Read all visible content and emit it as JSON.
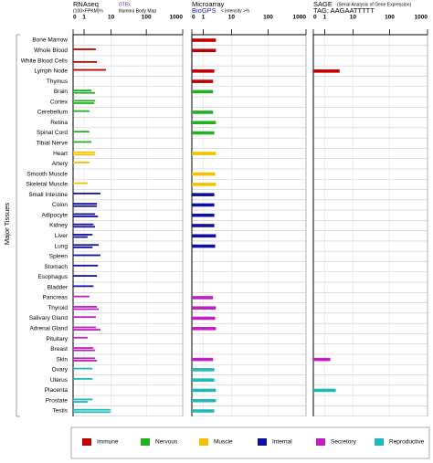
{
  "y_axis_label": "Major Tissues",
  "categories": [
    "Bone Marrow",
    "Whole Blood",
    "White Blood Cells",
    "Lymph Node",
    "Thymus",
    "Brain",
    "Cortex",
    "Cerebellum",
    "Retina",
    "Spinal Cord",
    "Tibial Nerve",
    "Heart",
    "Artery",
    "Smooth Muscle",
    "Skeletal Muscle",
    "Small Intestine",
    "Colon",
    "Adipocyte",
    "Kidney",
    "Liver",
    "Lung",
    "Spleen",
    "Stomach",
    "Esophagus",
    "Bladder",
    "Pancreas",
    "Thyroid",
    "Salivary Gland",
    "Adrenal Gland",
    "Pituitary",
    "Breast",
    "Skin",
    "Ovary",
    "Uterus",
    "Placenta",
    "Prostate",
    "Testis"
  ],
  "category_colors": [
    "#c00000",
    "#c00000",
    "#c00000",
    "#c00000",
    "#c00000",
    "#20b020",
    "#20b020",
    "#20b020",
    "#20b020",
    "#20b020",
    "#20b020",
    "#f5c000",
    "#f5c000",
    "#f5c000",
    "#f5c000",
    "#1010a0",
    "#1010a0",
    "#1010a0",
    "#1010a0",
    "#1010a0",
    "#1010a0",
    "#1010a0",
    "#1010a0",
    "#1010a0",
    "#1010a0",
    "#c020c0",
    "#c020c0",
    "#c020c0",
    "#c020c0",
    "#c020c0",
    "#c020c0",
    "#c020c0",
    "#20b8b8",
    "#20b8b8",
    "#20b8b8",
    "#20b8b8",
    "#20b8b8"
  ],
  "legend": [
    {
      "name": "Immune",
      "color": "#c00000"
    },
    {
      "name": "Nervous",
      "color": "#20b020"
    },
    {
      "name": "Muscle",
      "color": "#f5c000"
    },
    {
      "name": "Internal",
      "color": "#1010a0"
    },
    {
      "name": "Secretory",
      "color": "#c020c0"
    },
    {
      "name": "Reproductive",
      "color": "#20b8b8"
    }
  ],
  "chart_data": [
    {
      "type": "bar",
      "title": "RNAseq",
      "unit": "(100×FPKM)⅔",
      "xscale": "log1p",
      "xlim": [
        0,
        1000
      ],
      "xticks": [
        0,
        1,
        10,
        100,
        1000
      ],
      "grid": true,
      "series": [
        {
          "name": "GTEx",
          "values": [
            null,
            3.2,
            null,
            6.9,
            null,
            2.2,
            3.0,
            1.8,
            null,
            1.8,
            2.2,
            3.0,
            1.8,
            null,
            1.5,
            4.6,
            3.5,
            3.0,
            2.6,
            2.4,
            4.0,
            4.6,
            3.8,
            3.5,
            2.6,
            1.8,
            3.5,
            3.2,
            3.2,
            1.5,
            2.6,
            3.0,
            2.4,
            2.4,
            null,
            2.4,
            9.5
          ]
        },
        {
          "name": "Illumina Body Map",
          "values": [
            null,
            null,
            3.5,
            null,
            null,
            3.0,
            2.8,
            null,
            null,
            null,
            null,
            3.0,
            null,
            null,
            null,
            null,
            3.5,
            3.8,
            3.0,
            1.5,
            2.4,
            null,
            null,
            null,
            null,
            null,
            4.0,
            null,
            4.6,
            null,
            3.0,
            3.5,
            null,
            null,
            null,
            1.5,
            9.5
          ]
        }
      ]
    },
    {
      "type": "bar",
      "title": "Microarray",
      "unit": "< intensity >⅔",
      "xscale": "log1p",
      "xlim": [
        0,
        1000
      ],
      "xticks": [
        0,
        1,
        10,
        100,
        1000
      ],
      "grid": true,
      "series": [
        {
          "name": "BioGPS",
          "values": [
            3.3,
            3.3,
            null,
            2.9,
            2.6,
            2.6,
            null,
            2.6,
            3.3,
            2.9,
            null,
            3.3,
            null,
            3.1,
            3.3,
            2.9,
            2.9,
            2.9,
            2.9,
            3.3,
            3.1,
            null,
            null,
            null,
            null,
            2.6,
            3.3,
            3.1,
            3.3,
            null,
            null,
            2.6,
            2.9,
            2.9,
            3.3,
            3.3,
            2.9
          ]
        }
      ]
    },
    {
      "type": "bar",
      "title": "SAGE",
      "unit": "(Serial Analysis of Gene Expression)",
      "tag": "TAG: AAGAATTTTT",
      "xscale": "log1p",
      "xlim": [
        0,
        1000
      ],
      "xticks": [
        0,
        1,
        10,
        100,
        1000
      ],
      "grid": true,
      "series": [
        {
          "values": [
            null,
            null,
            null,
            3.9,
            null,
            null,
            null,
            null,
            null,
            null,
            null,
            null,
            null,
            null,
            null,
            null,
            null,
            null,
            null,
            null,
            null,
            null,
            null,
            null,
            null,
            null,
            null,
            null,
            null,
            null,
            null,
            1.8,
            null,
            null,
            2.9,
            null,
            null
          ]
        }
      ]
    }
  ]
}
